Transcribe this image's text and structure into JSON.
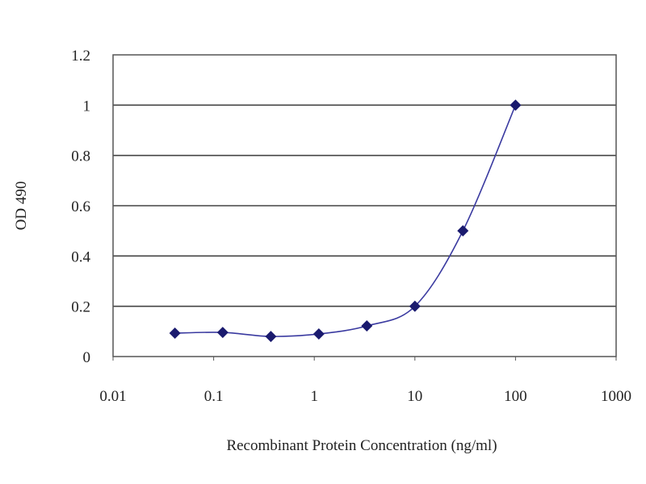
{
  "chart_data": {
    "type": "line",
    "title": "",
    "xlabel": "Recombinant Protein Concentration (ng/ml)",
    "ylabel": "OD 490",
    "x_scale": "log",
    "xlim": [
      0.01,
      1000
    ],
    "ylim": [
      0,
      1.2
    ],
    "x_ticks": [
      "0.01",
      "0.1",
      "1",
      "10",
      "100",
      "1000"
    ],
    "y_ticks": [
      "0",
      "0.2",
      "0.4",
      "0.6",
      "0.8",
      "1",
      "1.2"
    ],
    "grid": "horizontal",
    "legend": "none",
    "series": [
      {
        "x": [
          0.0412,
          0.123,
          0.37,
          1.11,
          3.33,
          10,
          30,
          100
        ],
        "y": [
          0.093,
          0.096,
          0.08,
          0.09,
          0.122,
          0.2,
          0.5,
          1.0
        ],
        "color": "#1a1a6e",
        "line_color": "#3a3aa0",
        "marker": "diamond"
      }
    ]
  }
}
